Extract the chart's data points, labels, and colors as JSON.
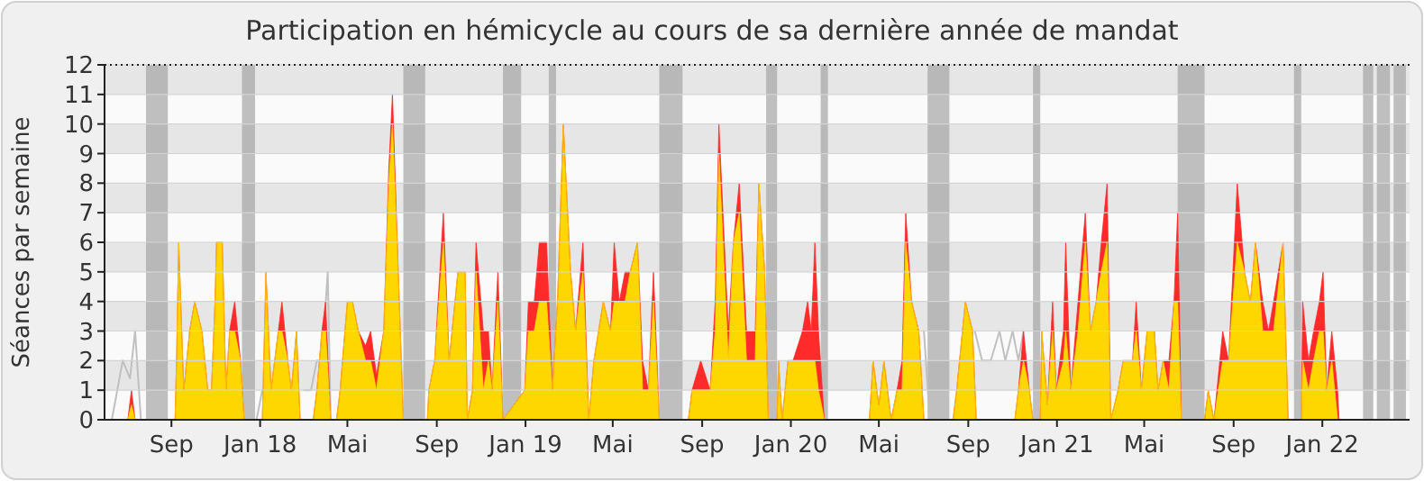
{
  "chart_data": {
    "type": "area",
    "title": "Participation en hémicycle au cours de sa dernière année de mandat",
    "ylabel": "Séances par semaine",
    "xlim": [
      "2017-06-01",
      "2022-05-01"
    ],
    "xticks": [
      {
        "value": "2017-09-01",
        "label": "Sep"
      },
      {
        "value": "2018-01-01",
        "label": "Jan 18"
      },
      {
        "value": "2018-05-01",
        "label": "Mai"
      },
      {
        "value": "2018-09-01",
        "label": "Sep"
      },
      {
        "value": "2019-01-01",
        "label": "Jan 19"
      },
      {
        "value": "2019-05-01",
        "label": "Mai"
      },
      {
        "value": "2019-09-01",
        "label": "Sep"
      },
      {
        "value": "2020-01-01",
        "label": "Jan 20"
      },
      {
        "value": "2020-05-01",
        "label": "Mai"
      },
      {
        "value": "2020-09-01",
        "label": "Sep"
      },
      {
        "value": "2021-01-01",
        "label": "Jan 21"
      },
      {
        "value": "2021-05-01",
        "label": "Mai"
      },
      {
        "value": "2021-09-01",
        "label": "Sep"
      },
      {
        "value": "2022-01-01",
        "label": "Jan 22"
      }
    ],
    "ylim": [
      0,
      12
    ],
    "yticks": [
      0,
      1,
      2,
      3,
      4,
      5,
      6,
      7,
      8,
      9,
      10,
      11,
      12
    ],
    "grid": "y",
    "x": [
      "2017-06-01",
      "2017-07-03",
      "2017-07-08",
      "2017-07-13",
      "2017-09-06",
      "2017-09-08",
      "2017-09-11",
      "2017-09-18",
      "2017-09-26",
      "2017-10-03",
      "2017-10-13",
      "2017-10-21",
      "2017-10-26",
      "2017-10-31",
      "2017-11-02",
      "2017-11-10",
      "2017-11-15",
      "2017-11-20",
      "2017-11-27",
      "2017-12-05",
      "2017-12-10",
      "2018-01-04",
      "2018-01-09",
      "2018-01-16",
      "2018-01-26",
      "2018-01-31",
      "2018-02-08",
      "2018-02-13",
      "2018-02-20",
      "2018-02-25",
      "2018-03-15",
      "2018-03-20",
      "2018-03-27",
      "2018-04-01",
      "2018-04-08",
      "2018-04-16",
      "2018-04-21",
      "2018-05-01",
      "2018-05-08",
      "2018-05-16",
      "2018-05-26",
      "2018-06-02",
      "2018-06-10",
      "2018-06-20",
      "2018-06-27",
      "2018-07-02",
      "2018-07-10",
      "2018-07-17",
      "2018-08-19",
      "2018-08-21",
      "2018-08-29",
      "2018-09-10",
      "2018-09-18",
      "2018-09-30",
      "2018-10-10",
      "2018-10-13",
      "2018-10-20",
      "2018-10-25",
      "2018-11-04",
      "2018-11-11",
      "2018-11-16",
      "2018-11-24",
      "2018-12-01",
      "2018-12-31",
      "2019-01-05",
      "2019-01-13",
      "2019-01-20",
      "2019-01-30",
      "2019-02-07",
      "2019-02-14",
      "2019-02-22",
      "2019-03-04",
      "2019-03-11",
      "2019-03-21",
      "2019-03-29",
      "2019-04-05",
      "2019-04-18",
      "2019-04-28",
      "2019-05-03",
      "2019-05-10",
      "2019-05-18",
      "2019-05-25",
      "2019-06-04",
      "2019-06-11",
      "2019-06-19",
      "2019-06-26",
      "2019-07-04",
      "2019-08-13",
      "2019-08-18",
      "2019-08-30",
      "2019-09-12",
      "2019-09-19",
      "2019-09-24",
      "2019-10-07",
      "2019-10-14",
      "2019-10-22",
      "2019-11-01",
      "2019-11-13",
      "2019-11-18",
      "2019-11-26",
      "2019-12-01",
      "2019-12-13",
      "2019-12-15",
      "2019-12-20",
      "2019-12-28",
      "2020-01-04",
      "2020-01-17",
      "2020-01-24",
      "2020-01-29",
      "2020-02-03",
      "2020-02-08",
      "2020-02-16",
      "2020-04-18",
      "2020-04-23",
      "2020-05-01",
      "2020-05-08",
      "2020-05-18",
      "2020-05-26",
      "2020-06-02",
      "2020-06-07",
      "2020-06-15",
      "2020-06-25",
      "2020-07-02",
      "2020-08-11",
      "2020-08-16",
      "2020-08-28",
      "2020-09-07",
      "2020-09-12",
      "2020-11-04",
      "2020-11-09",
      "2020-11-16",
      "2020-11-24",
      "2020-11-29",
      "2020-12-09",
      "2020-12-11",
      "2020-12-19",
      "2020-12-26",
      "2020-12-31",
      "2021-01-10",
      "2021-01-13",
      "2021-01-20",
      "2021-01-30",
      "2021-02-09",
      "2021-02-16",
      "2021-02-24",
      "2021-03-03",
      "2021-03-11",
      "2021-03-16",
      "2021-03-26",
      "2021-04-02",
      "2021-04-15",
      "2021-04-20",
      "2021-04-27",
      "2021-05-05",
      "2021-05-15",
      "2021-05-20",
      "2021-05-27",
      "2021-06-04",
      "2021-06-11",
      "2021-06-16",
      "2021-06-21",
      "2021-07-23",
      "2021-07-28",
      "2021-08-05",
      "2021-08-17",
      "2021-08-25",
      "2021-09-06",
      "2021-09-16",
      "2021-09-24",
      "2021-10-01",
      "2021-10-11",
      "2021-10-19",
      "2021-10-26",
      "2021-11-08",
      "2021-11-15",
      "2021-12-03",
      "2021-12-05",
      "2021-12-13",
      "2021-12-20",
      "2021-12-28",
      "2022-01-02",
      "2022-01-07",
      "2022-01-14",
      "2022-01-22",
      "2022-01-24",
      "2022-05-01"
    ],
    "series": [
      {
        "type": "line",
        "color": "#c0c0c0",
        "x": [
          "2017-06-11",
          "2017-06-26",
          "2017-07-06",
          "2017-07-13",
          "2017-07-21",
          "2017-10-01",
          "2017-12-27",
          "2018-01-04",
          "2018-02-01",
          "2018-03-02",
          "2018-03-12",
          "2018-03-20",
          "2018-03-27",
          "2018-04-04",
          "2018-04-08",
          "2018-05-01",
          "2020-07-02",
          "2020-07-10",
          "2020-08-20",
          "2020-09-10",
          "2020-09-20",
          "2020-10-02",
          "2020-10-14",
          "2020-10-22",
          "2020-11-01",
          "2020-11-09",
          "2020-11-16"
        ],
        "values": [
          0,
          2,
          1.4,
          3,
          0,
          null,
          0,
          1,
          null,
          1,
          1,
          2,
          2,
          5,
          0,
          null,
          3,
          0,
          null,
          3,
          2,
          2,
          3,
          2,
          3,
          2,
          3
        ]
      },
      {
        "color": "#ff2a2a",
        "values": [
          0,
          0,
          1,
          0,
          0,
          2,
          6,
          1,
          3,
          4,
          3,
          1,
          1,
          4,
          6,
          6,
          1,
          3,
          4,
          2,
          0,
          0,
          5,
          1,
          3,
          4,
          2,
          1,
          3,
          0,
          0,
          1,
          3,
          4,
          0,
          0,
          1,
          4,
          4,
          3,
          2.5,
          3,
          1.5,
          3,
          8.5,
          11,
          5,
          0,
          0,
          1,
          2,
          7,
          2,
          5,
          5,
          0,
          1,
          6,
          3,
          3,
          1,
          5,
          0,
          1,
          4,
          4,
          6,
          6,
          1,
          4,
          10,
          5,
          3,
          6,
          0,
          2,
          4,
          3,
          6,
          4,
          5,
          5,
          6,
          2,
          1,
          5,
          0,
          0,
          1,
          2,
          1,
          4,
          10,
          3,
          6,
          8,
          3,
          3,
          8,
          5,
          0,
          0,
          2,
          0,
          2,
          2,
          3,
          4,
          3,
          6,
          3,
          0,
          0,
          2,
          0.5,
          2,
          0,
          1,
          2,
          7,
          4,
          3,
          0,
          0,
          1,
          4,
          3,
          0,
          0,
          1,
          3,
          1,
          0,
          0,
          3,
          0.5,
          4,
          1,
          3,
          6,
          1,
          4,
          7,
          3,
          4,
          6,
          8,
          0,
          1,
          2,
          2,
          4,
          1,
          3,
          3,
          1,
          2,
          2,
          4,
          7,
          0,
          0,
          1,
          0,
          3,
          2,
          8,
          5,
          4,
          6,
          4,
          3,
          4,
          6,
          0,
          0,
          4,
          2,
          3,
          4,
          5,
          1,
          3,
          1,
          0,
          0
        ]
      },
      {
        "color": "#ffd700",
        "values": [
          0,
          0,
          0.5,
          0,
          0,
          2,
          6,
          1,
          3,
          4,
          3,
          1,
          1,
          4,
          6,
          6,
          1,
          3,
          3,
          2,
          0,
          0,
          5,
          1,
          3,
          3,
          2,
          1,
          3,
          0,
          0,
          1,
          3,
          3,
          0,
          0,
          1,
          4,
          4,
          3,
          2,
          2,
          1,
          3,
          8,
          10,
          5,
          0,
          0,
          1,
          2,
          6,
          2,
          5,
          5,
          0,
          1,
          5,
          1,
          2,
          1,
          4,
          0,
          1,
          3,
          3,
          4,
          4,
          1,
          4,
          10,
          5,
          3,
          5,
          0,
          2,
          4,
          3,
          4,
          4,
          4,
          5,
          6,
          1,
          1,
          4,
          0,
          0,
          1,
          1,
          1,
          3,
          9,
          2,
          6,
          7,
          2,
          2,
          8,
          5,
          0,
          0,
          2,
          0,
          2,
          2,
          2,
          2,
          2,
          2,
          1,
          0,
          0,
          2,
          0.5,
          2,
          0,
          1,
          1,
          6,
          4,
          3,
          0,
          0,
          1,
          4,
          3,
          0,
          0,
          1,
          2,
          1,
          0,
          0,
          3,
          0.5,
          3,
          1,
          2,
          3,
          1,
          3,
          6,
          3,
          4,
          5,
          6,
          0,
          1,
          2,
          2,
          3,
          1,
          3,
          3,
          1,
          2,
          1,
          4,
          4,
          0,
          0,
          1,
          0,
          2,
          2,
          6,
          5,
          4,
          6,
          3,
          3,
          3,
          6,
          0,
          0,
          2,
          1,
          2,
          3,
          3,
          1,
          2,
          0,
          0,
          0
        ]
      }
    ],
    "bands": [
      {
        "axis": "x",
        "from": "2017-07-28",
        "to": "2017-08-27",
        "color": "#a0a0a0"
      },
      {
        "axis": "x",
        "from": "2017-12-07",
        "to": "2017-12-25",
        "color": "#a0a0a0"
      },
      {
        "axis": "x",
        "from": "2018-07-17",
        "to": "2018-08-16",
        "color": "#a0a0a0"
      },
      {
        "axis": "x",
        "from": "2018-12-01",
        "to": "2018-12-26",
        "color": "#a0a0a0"
      },
      {
        "axis": "x",
        "from": "2019-02-02",
        "to": "2019-02-12",
        "color": "#a0a0a0"
      },
      {
        "axis": "x",
        "from": "2019-07-04",
        "to": "2019-08-05",
        "color": "#a0a0a0"
      },
      {
        "axis": "x",
        "from": "2019-11-28",
        "to": "2019-12-13",
        "color": "#a0a0a0"
      },
      {
        "axis": "x",
        "from": "2020-02-11",
        "to": "2020-02-21",
        "color": "#a0a0a0"
      },
      {
        "axis": "x",
        "from": "2020-07-07",
        "to": "2020-08-06",
        "color": "#a0a0a0"
      },
      {
        "axis": "x",
        "from": "2020-11-29",
        "to": "2020-12-09",
        "color": "#a0a0a0"
      },
      {
        "axis": "x",
        "from": "2021-06-16",
        "to": "2021-07-23",
        "color": "#a0a0a0"
      },
      {
        "axis": "x",
        "from": "2021-11-23",
        "to": "2021-12-03",
        "color": "#a0a0a0"
      },
      {
        "axis": "x",
        "from": "2022-02-26",
        "to": "2022-03-12",
        "color": "#a0a0a0"
      },
      {
        "axis": "x",
        "from": "2022-03-17",
        "to": "2022-04-04",
        "color": "#a0a0a0"
      },
      {
        "axis": "x",
        "from": "2022-04-09",
        "to": "2022-04-26",
        "color": "#a0a0a0"
      }
    ]
  }
}
